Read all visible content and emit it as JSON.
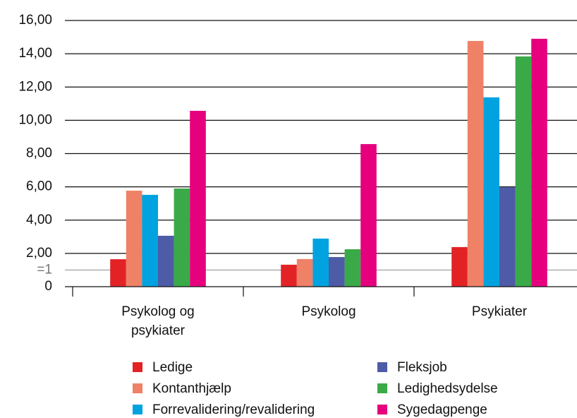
{
  "chart_data": {
    "type": "bar",
    "categories": [
      "Psykolog og psykiater",
      "Psykolog",
      "Psykiater"
    ],
    "series": [
      {
        "name": "Ledige",
        "color": "#e32226",
        "values": [
          1.65,
          1.32,
          2.38
        ]
      },
      {
        "name": "Kontanthjælp",
        "color": "#ef8166",
        "values": [
          5.77,
          1.66,
          14.77
        ]
      },
      {
        "name": "Forrevalidering/revalidering",
        "color": "#00a3e0",
        "values": [
          5.52,
          2.89,
          11.38
        ]
      },
      {
        "name": "Fleksjob",
        "color": "#4e5ba6",
        "values": [
          3.06,
          1.78,
          5.98
        ]
      },
      {
        "name": "Ledighedsydelse",
        "color": "#3aaa48",
        "values": [
          5.9,
          2.25,
          13.84
        ]
      },
      {
        "name": "Sygedagpenge",
        "color": "#e6007e",
        "values": [
          10.57,
          8.57,
          14.9
        ]
      }
    ],
    "ylim": [
      0,
      16
    ],
    "yticks": [
      0,
      {
        "value": 1,
        "label": "=1"
      },
      {
        "value": 2,
        "label": "2,00"
      },
      {
        "value": 4,
        "label": "4,00"
      },
      {
        "value": 6,
        "label": "6,00"
      },
      {
        "value": 8,
        "label": "8,00"
      },
      {
        "value": 10,
        "label": "10,00"
      },
      {
        "value": 12,
        "label": "12,00"
      },
      {
        "value": 14,
        "label": "14,00"
      },
      {
        "value": 16,
        "label": "16,00"
      }
    ],
    "grid": true
  }
}
